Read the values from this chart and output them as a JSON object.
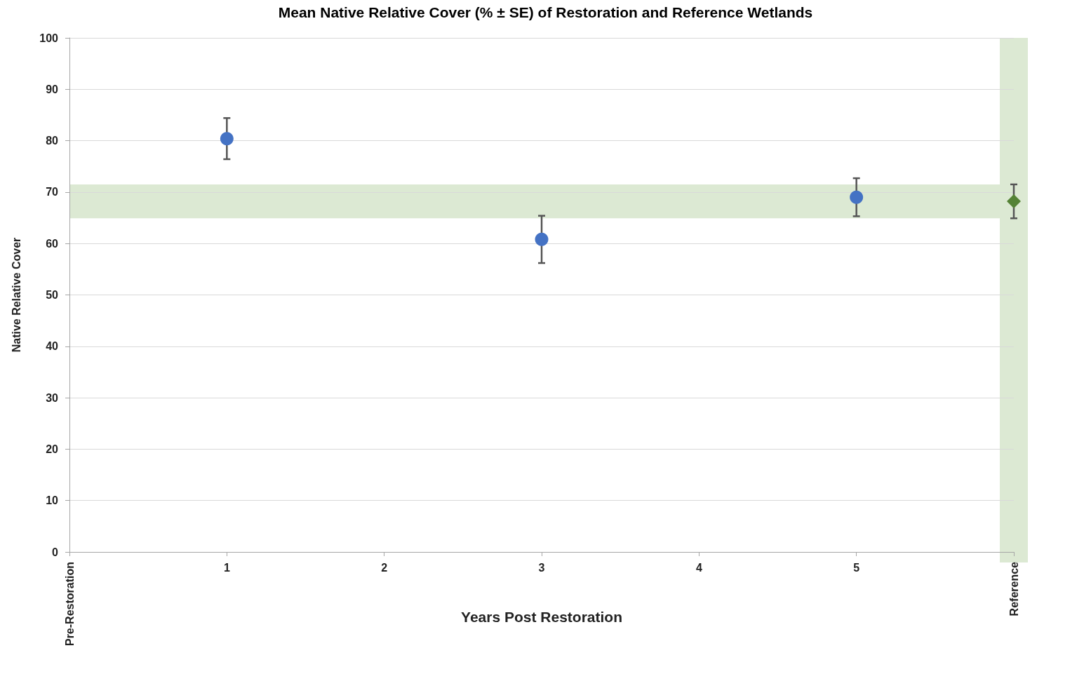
{
  "chart_data": {
    "type": "scatter",
    "title": "Mean Native Relative Cover (% ± SE) of Restoration and Reference Wetlands",
    "xlabel": "Years Post Restoration",
    "ylabel": "Native Relative Cover",
    "categories": [
      "Pre-Restoration",
      "1",
      "2",
      "3",
      "4",
      "5",
      "Reference"
    ],
    "series": [
      {
        "color": "#4472c4",
        "marker": "circle",
        "values": [
          null,
          80.4,
          null,
          60.8,
          null,
          69.0,
          null
        ],
        "errors": [
          null,
          4,
          null,
          4.6,
          null,
          3.7,
          null
        ]
      },
      {
        "color": "#548235",
        "marker": "diamond",
        "values": [
          null,
          null,
          null,
          null,
          null,
          null,
          68.2
        ],
        "errors": [
          null,
          null,
          null,
          null,
          null,
          null,
          3.3
        ]
      }
    ],
    "ylim": [
      0,
      100
    ],
    "yticks": [
      0,
      10,
      20,
      30,
      40,
      50,
      60,
      70,
      80,
      90,
      100
    ],
    "bands": [
      {
        "axis": "y",
        "from": 64.9,
        "to": 71.5,
        "color": "#dce9d3"
      },
      {
        "axis": "x",
        "from": "Reference",
        "to": "Reference",
        "color": "#dce9d3"
      }
    ],
    "grid": "y"
  }
}
